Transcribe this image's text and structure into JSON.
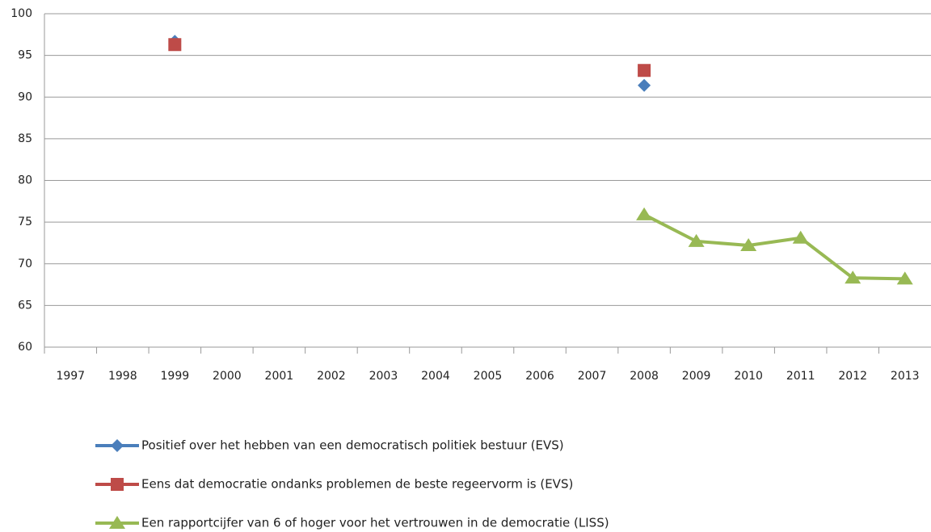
{
  "chart_data": {
    "type": "line",
    "categories": [
      "1997",
      "1998",
      "1999",
      "2000",
      "2001",
      "2002",
      "2003",
      "2004",
      "2005",
      "2006",
      "2007",
      "2008",
      "2009",
      "2010",
      "2011",
      "2012",
      "2013"
    ],
    "series": [
      {
        "name": "Positief over het hebben van een democratisch politiek bestuur (EVS)",
        "color": "#4a7ebb",
        "marker": "diamond",
        "values": [
          null,
          null,
          96.7,
          null,
          null,
          null,
          null,
          null,
          null,
          null,
          null,
          91.4,
          null,
          null,
          null,
          null,
          null
        ]
      },
      {
        "name": "Eens dat democratie ondanks problemen de beste regeervorm is (EVS)",
        "color": "#be4b48",
        "marker": "square",
        "values": [
          null,
          null,
          96.3,
          null,
          null,
          null,
          null,
          null,
          null,
          null,
          null,
          93.2,
          null,
          null,
          null,
          null,
          null
        ]
      },
      {
        "name": "Een rapportcijfer van 6 of hoger voor het vertrouwen in de democratie (LISS)",
        "color": "#98b954",
        "marker": "triangle",
        "values": [
          null,
          null,
          null,
          null,
          null,
          null,
          null,
          null,
          null,
          null,
          null,
          75.9,
          72.7,
          72.2,
          73.1,
          68.3,
          68.2
        ]
      }
    ],
    "ylim": [
      60,
      100
    ],
    "yticks": [
      60,
      65,
      70,
      75,
      80,
      85,
      90,
      95,
      100
    ],
    "grid": true,
    "legend": "bottom"
  }
}
